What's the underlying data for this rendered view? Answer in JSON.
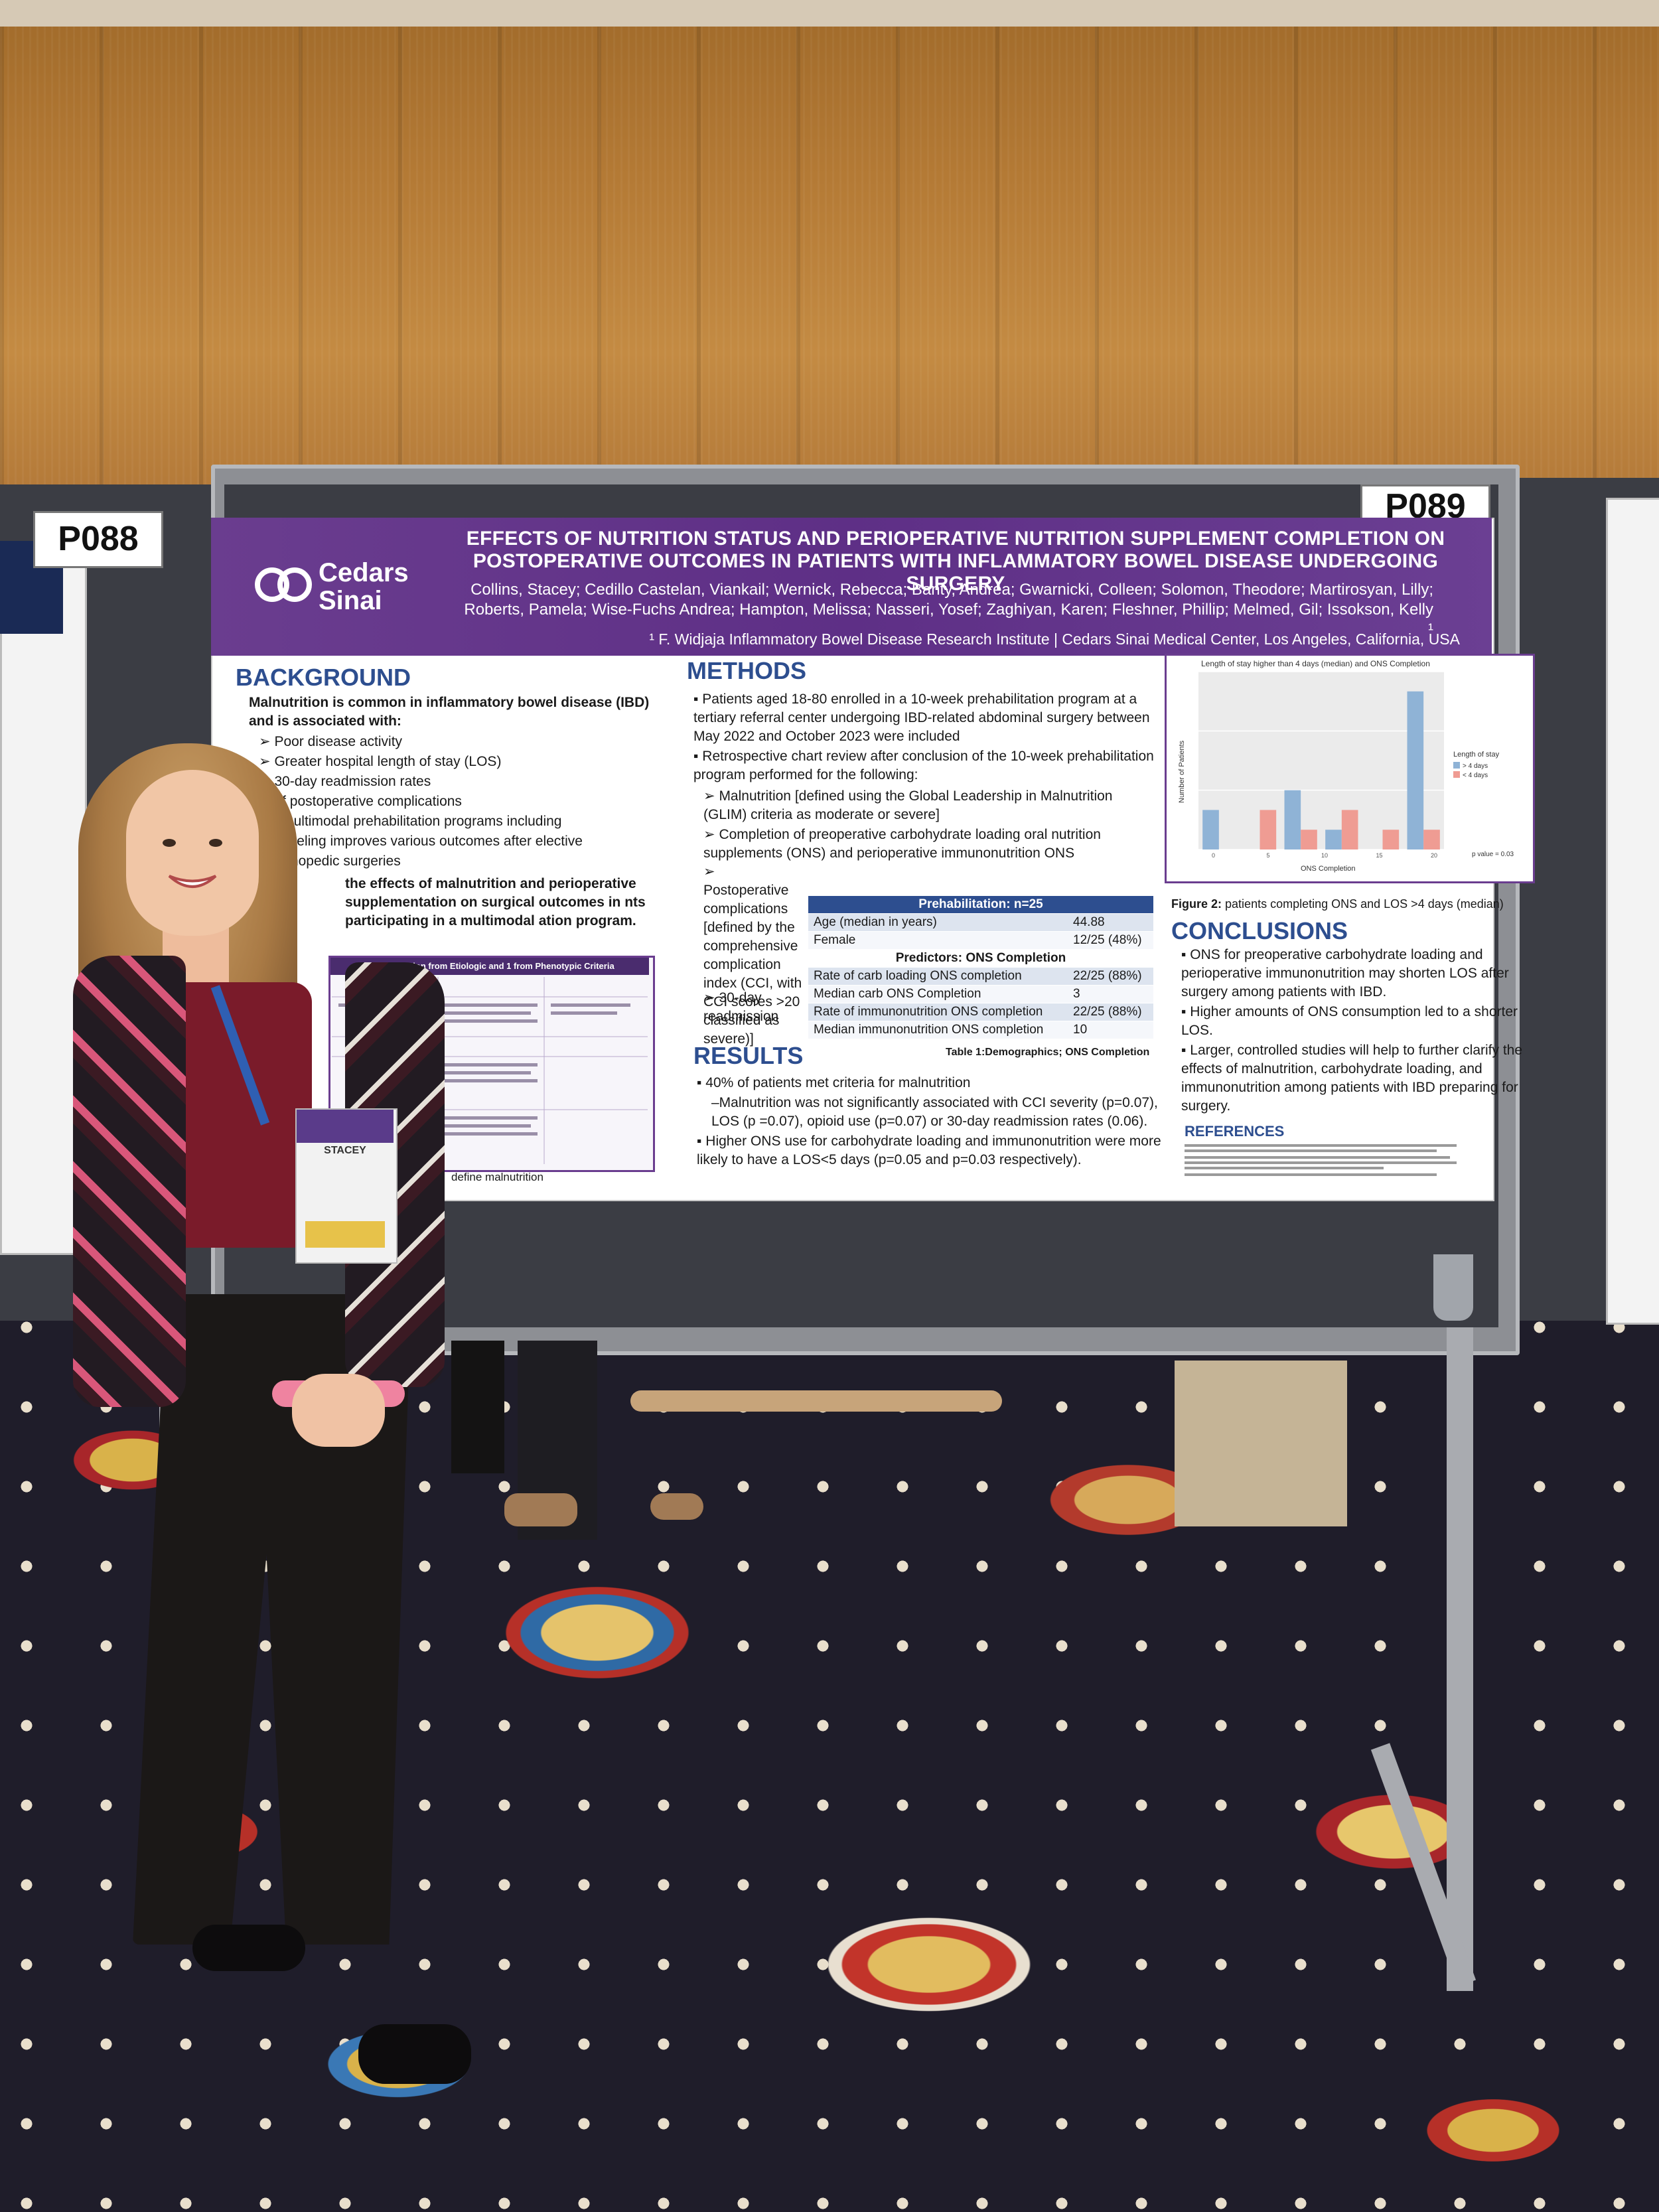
{
  "scene": {
    "left_board_label": "P088",
    "right_board_label": "P089"
  },
  "poster": {
    "logo_line1": "Cedars",
    "logo_line2": "Sinai",
    "title": "EFFECTS OF NUTRITION STATUS AND PERIOPERATIVE NUTRITION SUPPLEMENT COMPLETION ON POSTOPERATIVE OUTCOMES IN PATIENTS WITH INFLAMMATORY BOWEL DISEASE UNDERGOING SURGERY",
    "authors": "Collins, Stacey; Cedillo Castelan, Viankail; Wernick, Rebecca; Banty, Andrea; Gwarnicki, Colleen; Solomon, Theodore; Martirosyan, Lilly; Roberts, Pamela; Wise-Fuchs Andrea; Hampton, Melissa; Nasseri, Yosef; Zaghiyan, Karen; Fleshner, Phillip; Melmed, Gil; Issokson, Kelly ¹",
    "affiliation": "¹ F. Widjaja Inflammatory Bowel Disease Research Institute | Cedars Sinai Medical Center, Los Angeles, California, USA",
    "background": {
      "heading": "BACKGROUND",
      "lead": "Malnutrition is common in inflammatory bowel disease (IBD) and is associated with:",
      "bullets": [
        "Poor disease activity",
        "Greater hospital length of stay (LOS)",
        "30-day readmission rates",
        "of postoperative complications",
        ", multimodal prehabilitation programs including",
        "unseling improves various outcomes after elective",
        "orthopedic surgeries"
      ],
      "aim": "the effects of malnutrition and perioperative supplementation on surgical outcomes in nts participating in a multimodal ation program.",
      "glim_header": "ds 1 Criterion from Etiologic and 1 from Phenotypic Criteria",
      "glim_caption": "define malnutrition"
    },
    "methods": {
      "heading": "METHODS",
      "items": [
        "Patients aged 18-80 enrolled in a 10-week prehabilitation program at a tertiary referral center undergoing IBD-related abdominal surgery between May 2022 and October 2023 were included",
        "Retrospective chart review after conclusion of the 10-week prehabilitation program performed for the following:"
      ],
      "subitems": [
        "Malnutrition [defined using the Global Leadership in Malnutrition (GLIM) criteria as moderate or severe]",
        "Completion of preoperative carbohydrate loading oral nutrition supplements (ONS) and perioperative immunonutrition ONS",
        "Postoperative complications [defined by the comprehensive complication index (CCI, with CCI scores >20 classified as severe)]",
        "30-day readmission"
      ]
    },
    "table": {
      "header": "Prehabilitation: n=25",
      "rows": [
        [
          "Age (median in years)",
          "44.88"
        ],
        [
          "Female",
          "12/25 (48%)"
        ]
      ],
      "subheader": "Predictors: ONS Completion",
      "rows2": [
        [
          "Rate of carb loading ONS completion",
          "22/25 (88%)"
        ],
        [
          "Median carb ONS Completion",
          "3"
        ],
        [
          "Rate of immunonutrition ONS completion",
          "22/25 (88%)"
        ],
        [
          "Median immunonutrition ONS completion",
          "10"
        ]
      ],
      "caption": "Table 1:Demographics; ONS Completion"
    },
    "results": {
      "heading": "RESULTS",
      "items": [
        "40% of patients met criteria for malnutrition",
        "–Malnutrition was not significantly associated with CCI severity (p=0.07), LOS (p =0.07), opioid use (p=0.07) or 30-day readmission rates (0.06).",
        "Higher ONS use for carbohydrate loading and immunonutrition were more likely to have a LOS<5 days (p=0.05 and p=0.03 respectively)."
      ]
    },
    "figure": {
      "title": "Length of stay higher than 4 days (median) and ONS Completion",
      "caption_bold": "Figure 2:",
      "caption": "patients completing ONS and LOS >4 days (median)"
    },
    "conclusions": {
      "heading": "CONCLUSIONS",
      "items": [
        "ONS for preoperative carbohydrate loading and perioperative immunonutrition may shorten LOS after surgery among patients with IBD.",
        "Higher amounts of ONS consumption led to a shorter LOS.",
        "Larger, controlled studies will help to further clarify the effects of malnutrition, carbohydrate loading, and immunonutrition among patients with IBD preparing for surgery."
      ]
    },
    "references": {
      "heading": "REFERENCES"
    }
  },
  "chart_data": {
    "type": "bar",
    "title": "Length of stay higher than 4 days (median) and ONS Completion",
    "xlabel": "ONS Completion",
    "ylabel": "Number of Patients",
    "x_ticks": [
      "0",
      "5",
      "10",
      "15",
      "20"
    ],
    "y_ticks": [],
    "legend_title": "Length of stay",
    "legend_placement": "right",
    "grid": true,
    "p_value_label": "p value = 0.03",
    "series": [
      {
        "name": "> 4 days",
        "color": "#8fb3d6",
        "values": [
          2,
          0,
          3,
          1,
          0,
          8
        ]
      },
      {
        "name": "< 4 days",
        "color": "#ef9c93",
        "values": [
          0,
          2,
          1,
          2,
          1,
          1
        ]
      }
    ],
    "categories": [
      "1",
      "2",
      "3",
      "4",
      "5",
      "6"
    ]
  },
  "badge": {
    "name": "STACEY"
  },
  "colors": {
    "header_purple": "#5e2f86",
    "section_blue": "#2d4e8f"
  }
}
